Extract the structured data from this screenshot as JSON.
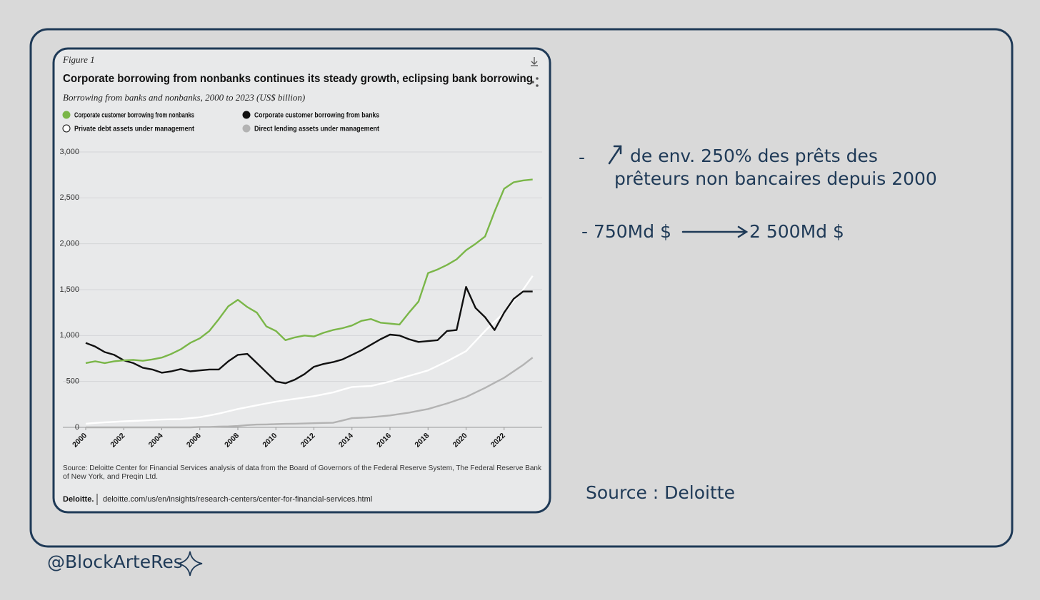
{
  "chart_data": {
    "type": "line",
    "figure_label": "Figure 1",
    "title": "Corporate borrowing from nonbanks continues its steady growth, eclipsing bank borrowing",
    "subtitle": "Borrowing from banks and nonbanks, 2000 to 2023 (US$ billion)",
    "x": [
      2000,
      2000.5,
      2001,
      2001.5,
      2002,
      2002.5,
      2003,
      2003.5,
      2004,
      2004.5,
      2005,
      2005.5,
      2006,
      2006.5,
      2007,
      2007.5,
      2008,
      2008.5,
      2009,
      2009.5,
      2010,
      2010.5,
      2011,
      2011.5,
      2012,
      2012.5,
      2013,
      2013.5,
      2014,
      2014.5,
      2015,
      2015.5,
      2016,
      2016.5,
      2017,
      2017.5,
      2018,
      2018.5,
      2019,
      2019.5,
      2020,
      2020.5,
      2021,
      2021.5,
      2022,
      2022.5,
      2023,
      2023.5
    ],
    "series": [
      {
        "name": "Corporate customer borrowing from nonbanks",
        "color": "#7ab648",
        "values": [
          700,
          720,
          700,
          720,
          730,
          735,
          725,
          740,
          760,
          800,
          850,
          920,
          970,
          1050,
          1180,
          1320,
          1390,
          1310,
          1250,
          1100,
          1050,
          950,
          980,
          1000,
          990,
          1030,
          1060,
          1080,
          1110,
          1160,
          1180,
          1140,
          1130,
          1120,
          1250,
          1370,
          1680,
          1720,
          1770,
          1830,
          1930,
          2000,
          2080,
          2350,
          2600,
          2670,
          2690,
          2700
        ]
      },
      {
        "name": "Corporate customer borrowing from banks",
        "color": "#111111",
        "values": [
          920,
          880,
          820,
          790,
          730,
          700,
          650,
          630,
          595,
          610,
          635,
          610,
          620,
          630,
          630,
          720,
          790,
          800,
          700,
          600,
          500,
          480,
          520,
          580,
          660,
          690,
          710,
          740,
          790,
          840,
          900,
          960,
          1010,
          1000,
          960,
          930,
          940,
          950,
          1050,
          1060,
          1530,
          1300,
          1200,
          1060,
          1250,
          1400,
          1480,
          1480
        ]
      },
      {
        "name": "Private debt assets under management",
        "color": "#ffffff",
        "values": [
          40,
          48,
          55,
          60,
          65,
          70,
          75,
          80,
          85,
          88,
          90,
          100,
          110,
          130,
          150,
          175,
          200,
          220,
          240,
          260,
          280,
          295,
          310,
          325,
          340,
          360,
          380,
          410,
          440,
          445,
          450,
          475,
          500,
          530,
          560,
          590,
          620,
          670,
          720,
          775,
          830,
          940,
          1050,
          1150,
          1250,
          1375,
          1500,
          1650
        ]
      },
      {
        "name": "Direct lending assets under management",
        "color": "#b3b3b3",
        "values": [
          0,
          0,
          0,
          0,
          0,
          0,
          0,
          0,
          0,
          0,
          0,
          0,
          5,
          5,
          8,
          10,
          15,
          25,
          30,
          32,
          35,
          38,
          40,
          42,
          45,
          48,
          50,
          75,
          100,
          105,
          110,
          120,
          130,
          145,
          160,
          180,
          200,
          230,
          260,
          295,
          330,
          380,
          430,
          485,
          540,
          610,
          680,
          760
        ]
      }
    ],
    "xlim": [
      2000,
      2024
    ],
    "xticks": [
      2000,
      2002,
      2004,
      2006,
      2008,
      2010,
      2012,
      2014,
      2016,
      2018,
      2020,
      2022
    ],
    "ylim": [
      0,
      3000
    ],
    "yticks": [
      0,
      500,
      {
        "value": 1000,
        "label": "1,000"
      },
      {
        "value": 1500,
        "label": "1,500"
      },
      {
        "value": 2000,
        "label": "2,000"
      },
      {
        "value": 2500,
        "label": "2,500"
      },
      {
        "value": 3000,
        "label": "3,000"
      }
    ],
    "grid": true,
    "source": "Source: Deloitte Center for Financial Services analysis of data from the Board of Governors of the Federal Reserve System, The Federal Reserve Bank",
    "source_line2": "of New York, and Preqin Ltd.",
    "brand": "Deloitte.",
    "url": "deloitte.com/us/en/insights/research-centers/center-for-financial-services.html"
  },
  "notes": {
    "bullet1_dash": "-",
    "bullet1_line1": "de env. 250% des prêts des",
    "bullet1_line2": "prêteurs non bancaires depuis 2000",
    "bullet2_from": "- 750Md $",
    "bullet2_to": "2 500Md $",
    "source": "Source : Deloitte",
    "handle": "@BlockArteRes"
  }
}
